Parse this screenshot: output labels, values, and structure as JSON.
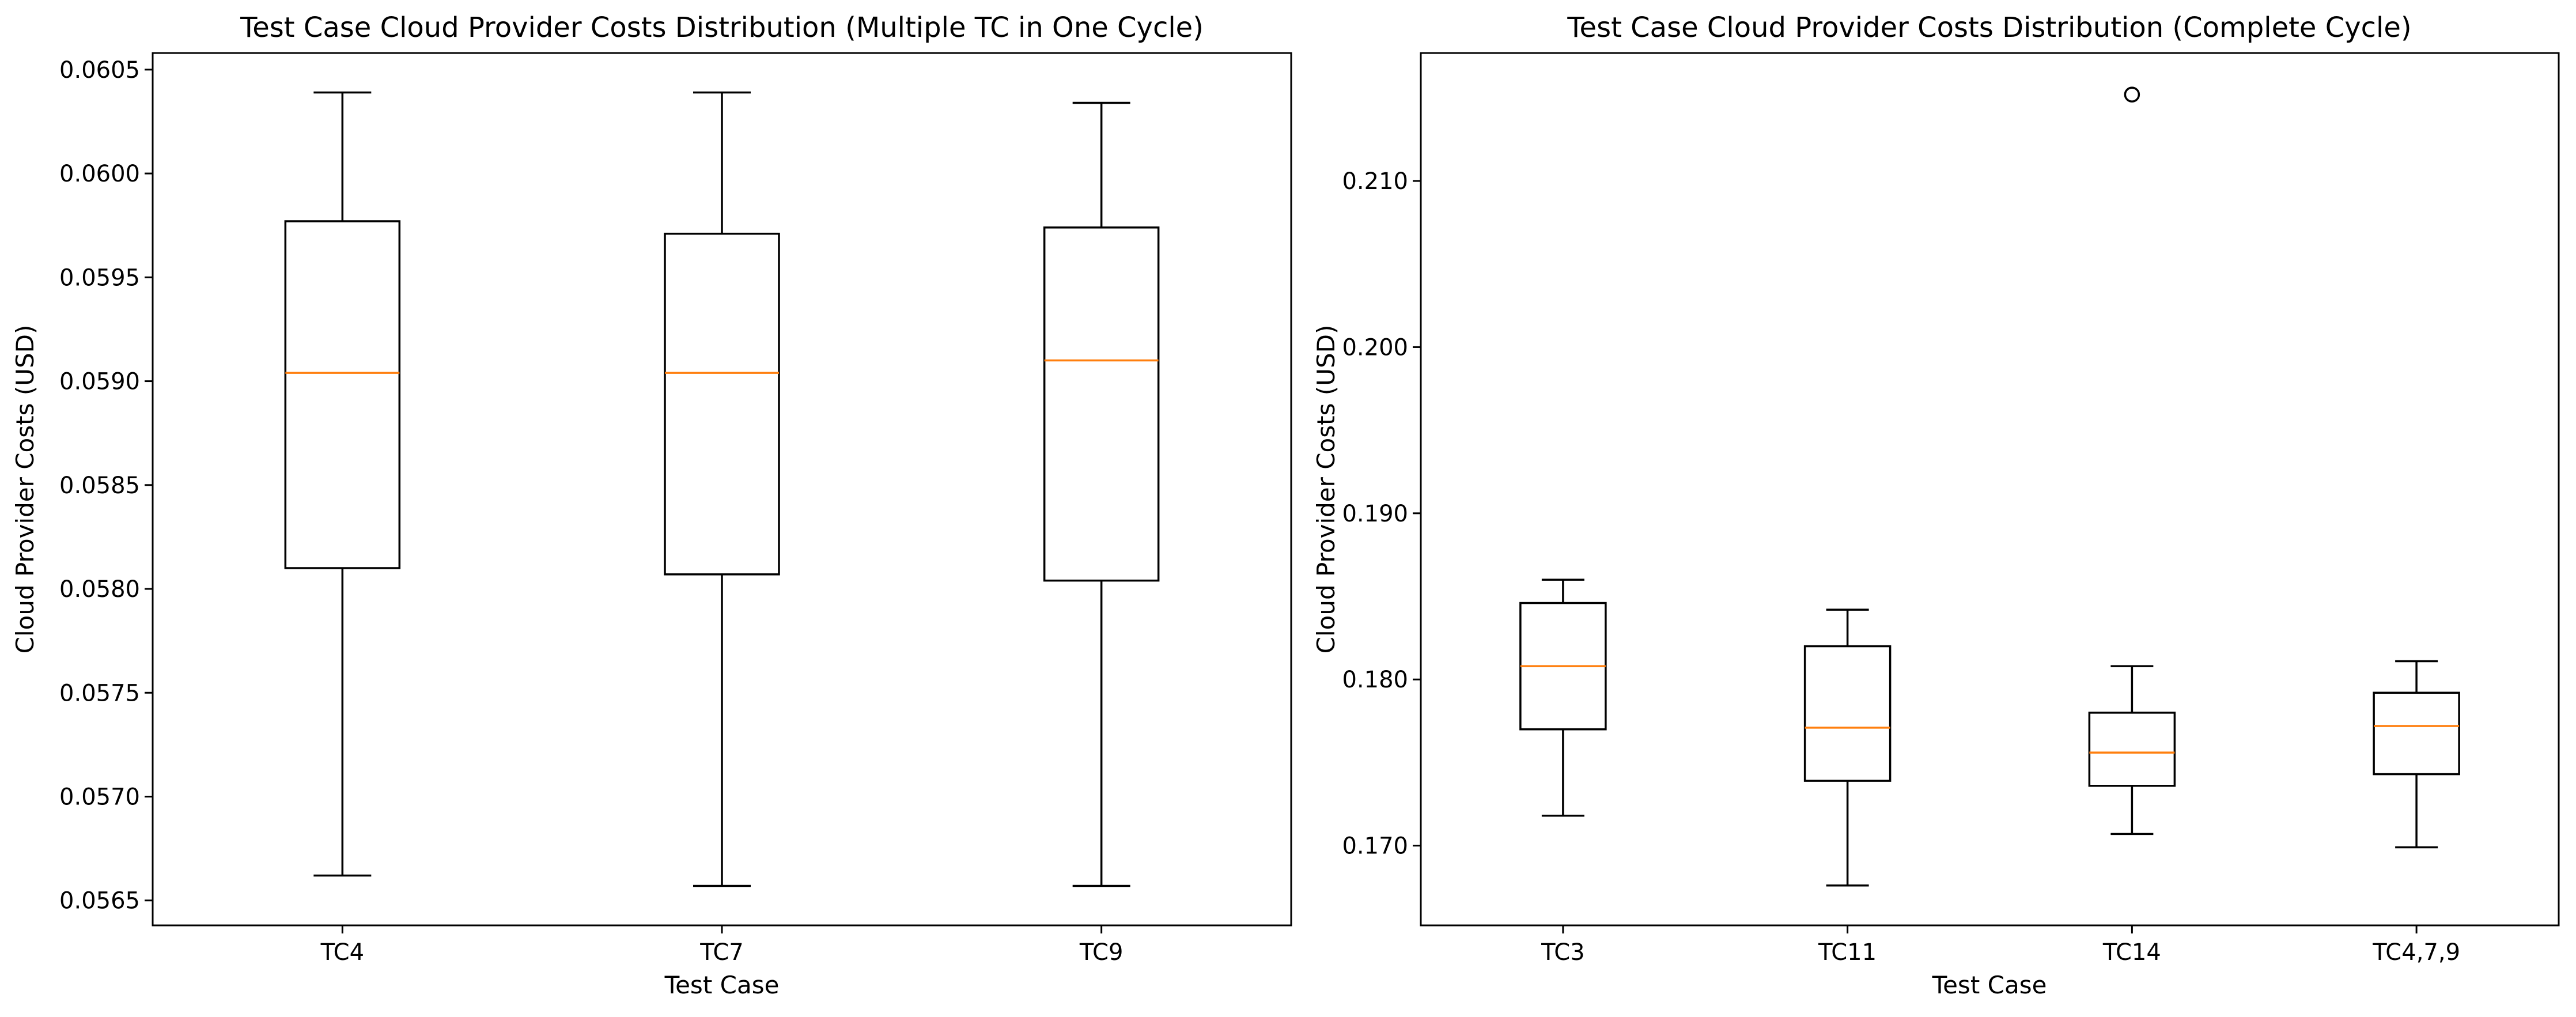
{
  "chart_data": [
    {
      "type": "box",
      "title": "Test Case Cloud Provider Costs Distribution (Multiple TC in One Cycle)",
      "xlabel": "Test Case",
      "ylabel": "Cloud Provider Costs (USD)",
      "ylim": [
        0.05638,
        0.06058
      ],
      "yticks": [
        0.0565,
        0.057,
        0.0575,
        0.058,
        0.0585,
        0.059,
        0.0595,
        0.06,
        0.0605
      ],
      "ytick_labels": [
        "0.0565",
        "0.0570",
        "0.0575",
        "0.0580",
        "0.0585",
        "0.0590",
        "0.0595",
        "0.0600",
        "0.0605"
      ],
      "categories": [
        "TC4",
        "TC7",
        "TC9"
      ],
      "boxes": [
        {
          "label": "TC4",
          "whisker_low": 0.05662,
          "q1": 0.0581,
          "median": 0.05904,
          "q3": 0.05977,
          "whisker_high": 0.06039,
          "outliers": []
        },
        {
          "label": "TC7",
          "whisker_low": 0.05657,
          "q1": 0.05807,
          "median": 0.05904,
          "q3": 0.05971,
          "whisker_high": 0.06039,
          "outliers": []
        },
        {
          "label": "TC9",
          "whisker_low": 0.05657,
          "q1": 0.05804,
          "median": 0.0591,
          "q3": 0.05974,
          "whisker_high": 0.06034,
          "outliers": []
        }
      ]
    },
    {
      "type": "box",
      "title": "Test Case Cloud Provider Costs Distribution (Complete Cycle)",
      "xlabel": "Test Case",
      "ylabel": "Cloud Provider Costs (USD)",
      "ylim": [
        0.1652,
        0.2177
      ],
      "yticks": [
        0.17,
        0.18,
        0.19,
        0.2,
        0.21
      ],
      "ytick_labels": [
        "0.170",
        "0.180",
        "0.190",
        "0.200",
        "0.210"
      ],
      "categories": [
        "TC3",
        "TC11",
        "TC14",
        "TC4,7,9"
      ],
      "boxes": [
        {
          "label": "TC3",
          "whisker_low": 0.1718,
          "q1": 0.177,
          "median": 0.1808,
          "q3": 0.1846,
          "whisker_high": 0.186,
          "outliers": []
        },
        {
          "label": "TC11",
          "whisker_low": 0.1676,
          "q1": 0.1739,
          "median": 0.1771,
          "q3": 0.182,
          "whisker_high": 0.1842,
          "outliers": []
        },
        {
          "label": "TC14",
          "whisker_low": 0.1707,
          "q1": 0.1736,
          "median": 0.1756,
          "q3": 0.178,
          "whisker_high": 0.1808,
          "outliers": [
            0.2152
          ]
        },
        {
          "label": "TC4,7,9",
          "whisker_low": 0.1699,
          "q1": 0.1743,
          "median": 0.1772,
          "q3": 0.1792,
          "whisker_high": 0.1811,
          "outliers": []
        }
      ]
    }
  ],
  "colors": {
    "box": "#000000",
    "median": "#ff7f0e",
    "background": "#ffffff"
  }
}
